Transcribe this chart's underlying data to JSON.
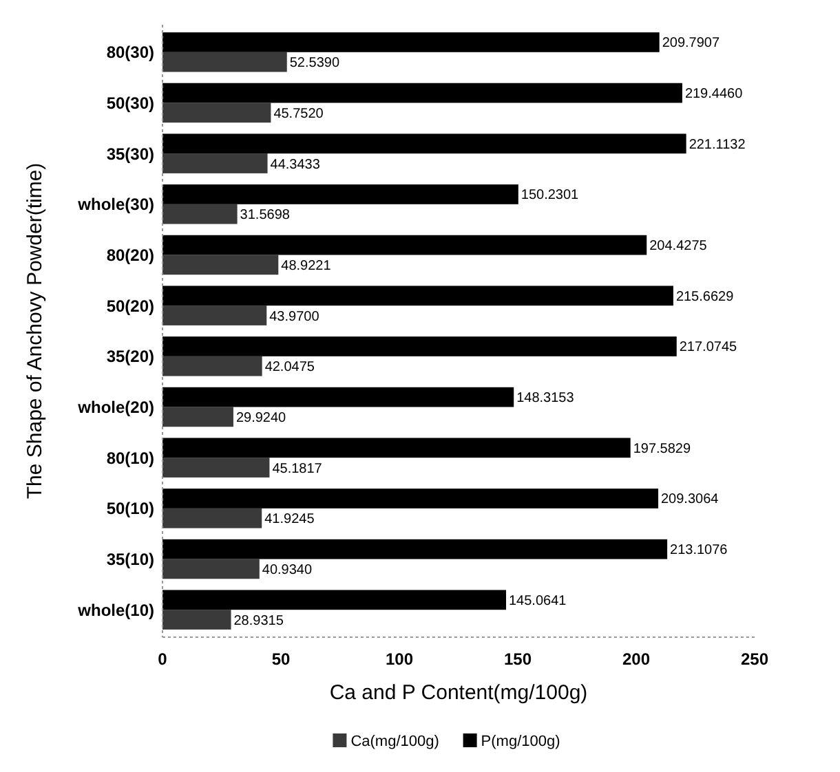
{
  "chart_data": {
    "type": "bar",
    "orientation": "horizontal",
    "xlabel": "Ca and P Content(mg/100g)",
    "ylabel": "The Shape of Anchovy Powder(time)",
    "categories": [
      "80(30)",
      "50(30)",
      "35(30)",
      "whole(30)",
      "80(20)",
      "50(20)",
      "35(20)",
      "whole(20)",
      "80(10)",
      "50(10)",
      "35(10)",
      "whole(10)"
    ],
    "series": [
      {
        "name": "Ca(mg/100g)",
        "color": "#3a3a3a",
        "values": [
          52.539,
          45.752,
          44.3433,
          31.5698,
          48.9221,
          43.97,
          42.0475,
          29.924,
          45.1817,
          41.9245,
          40.934,
          28.9315
        ],
        "value_labels": [
          "52.5390",
          "45.7520",
          "44.3433",
          "31.5698",
          "48.9221",
          "43.9700",
          "42.0475",
          "29.9240",
          "45.1817",
          "41.9245",
          "40.9340",
          "28.9315"
        ]
      },
      {
        "name": "P(mg/100g)",
        "color": "#000000",
        "values": [
          209.7907,
          219.446,
          221.1132,
          150.2301,
          204.4275,
          215.6629,
          217.0745,
          148.3153,
          197.5829,
          209.3064,
          213.1076,
          145.0641
        ],
        "value_labels": [
          "209.7907",
          "219.4460",
          "221.1132",
          "150.2301",
          "204.4275",
          "215.6629",
          "217.0745",
          "148.3153",
          "197.5829",
          "209.3064",
          "213.1076",
          "145.0641"
        ]
      }
    ],
    "xlim": [
      0,
      250
    ],
    "xticks": [
      0,
      50,
      100,
      150,
      200,
      250
    ],
    "grid": false,
    "legend": "bottom"
  }
}
